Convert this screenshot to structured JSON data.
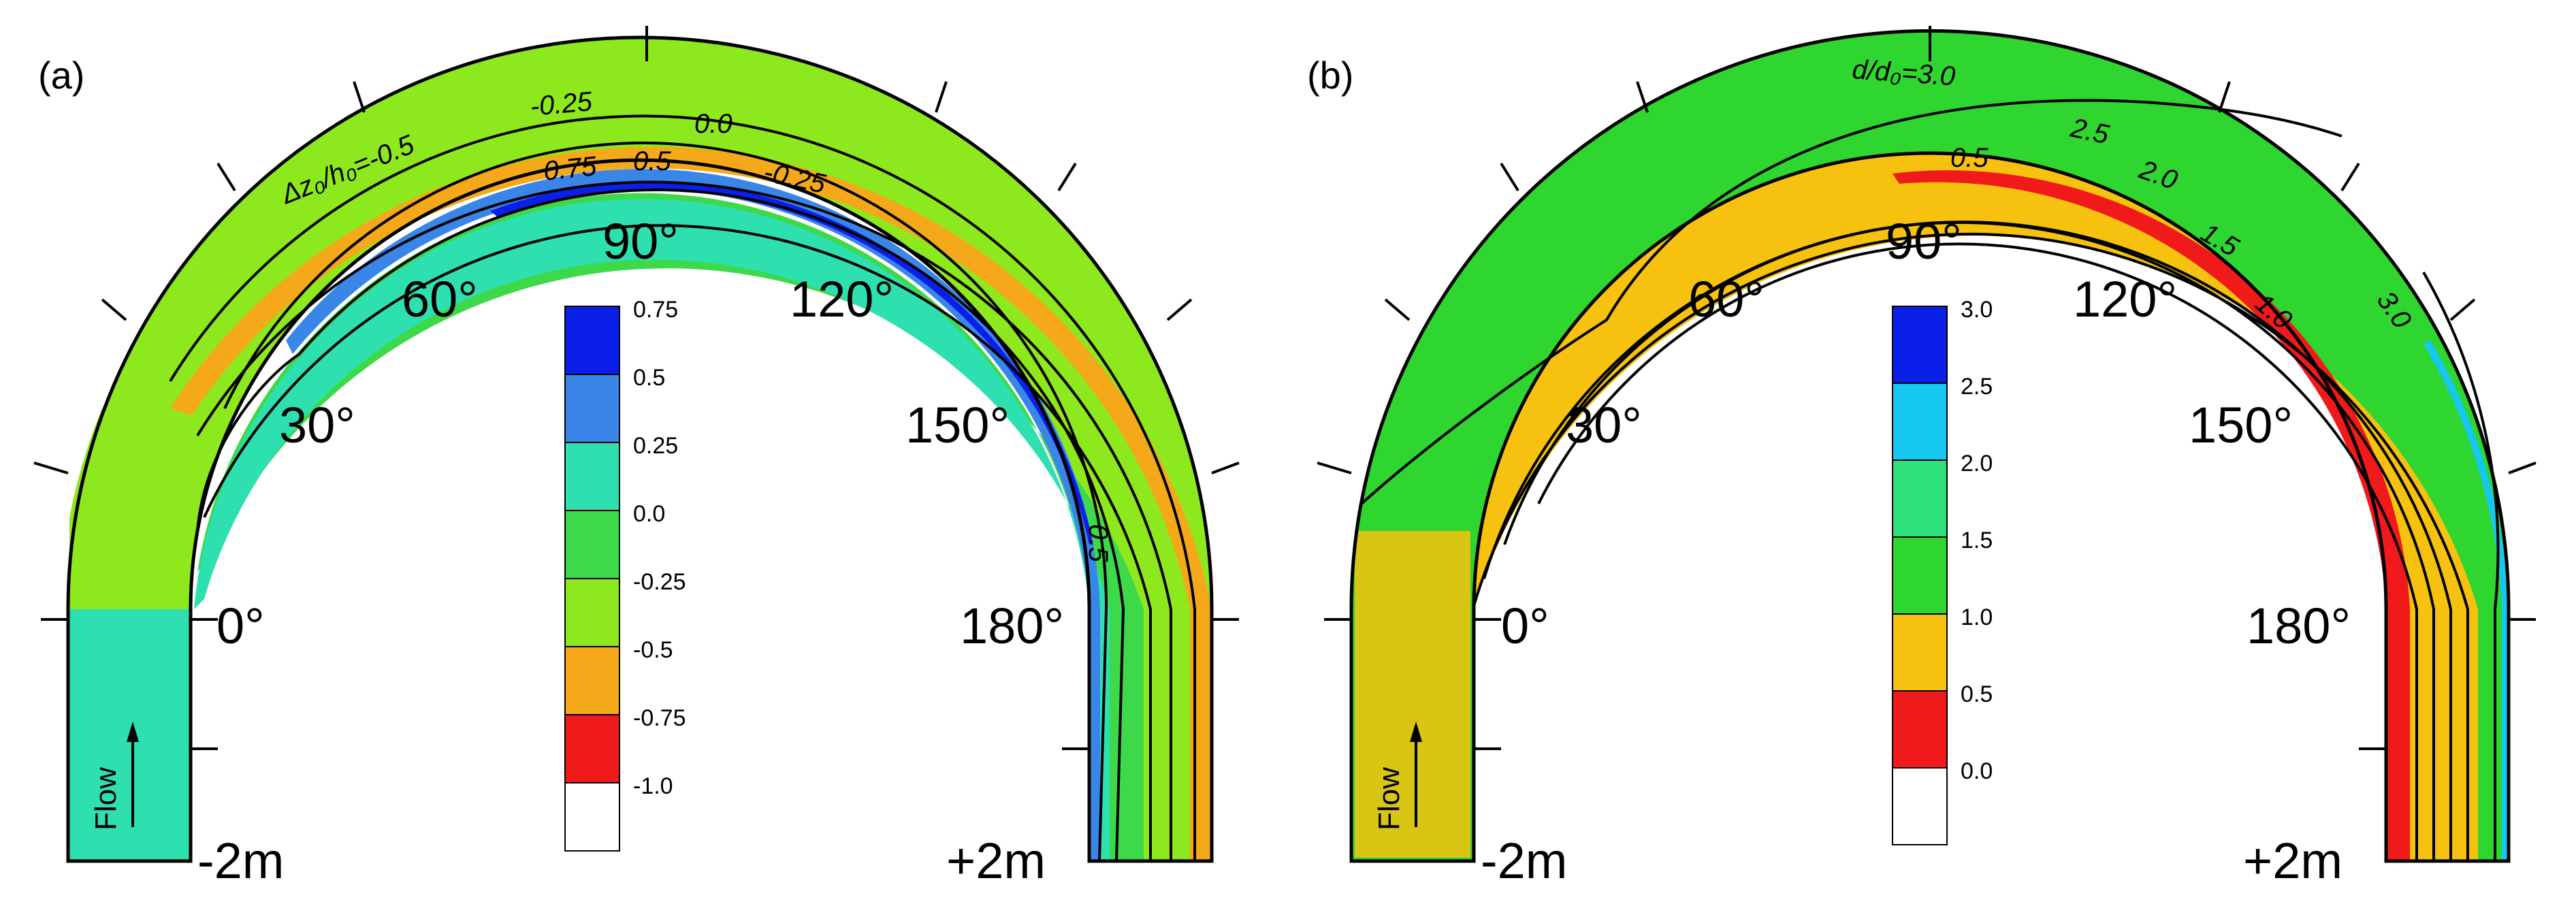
{
  "panels": [
    {
      "label": "(a)",
      "angles": [
        "0°",
        "30°",
        "60°",
        "90°",
        "120°",
        "150°",
        "180°"
      ],
      "left_end_label": "-2m",
      "right_end_label": "+2m",
      "flow_label": "Flow",
      "contour_labels": [
        "Δz₀/h₀=-0.5",
        "-0.25",
        "0.0",
        "-0.25",
        "0.75",
        "0.5",
        "0.5"
      ],
      "legend": [
        {
          "label": "0.75",
          "color": "#0a1fe8"
        },
        {
          "label": "0.5",
          "color": "#3a86e8"
        },
        {
          "label": "0.25",
          "color": "#2ee0b0"
        },
        {
          "label": "0.0",
          "color": "#3dd94a"
        },
        {
          "label": "-0.25",
          "color": "#8ee81e"
        },
        {
          "label": "-0.5",
          "color": "#f4a81a"
        },
        {
          "label": "-0.75",
          "color": "#f11a1a"
        },
        {
          "label": "-1.0",
          "color": "#ffffff"
        }
      ],
      "colors": {
        "outer": "#f4a81a",
        "mid": "#8ee81e",
        "green": "#3dd94a",
        "teal": "#2ee0b0",
        "blue": "#3a86e8",
        "deep": "#0a1fe8"
      }
    },
    {
      "label": "(b)",
      "angles": [
        "0°",
        "30°",
        "60°",
        "90°",
        "120°",
        "150°",
        "180°"
      ],
      "left_end_label": "-2m",
      "right_end_label": "+2m",
      "flow_label": "Flow",
      "contour_labels": [
        "d/d₀=3.0",
        "2.5",
        "2.0",
        "1.5",
        "1.0",
        "0.5",
        "3.0"
      ],
      "legend": [
        {
          "label": "3.0",
          "color": "#0a1fe8"
        },
        {
          "label": "2.5",
          "color": "#16c8f0"
        },
        {
          "label": "2.0",
          "color": "#2ee07a"
        },
        {
          "label": "1.5",
          "color": "#2fd62f"
        },
        {
          "label": "1.0",
          "color": "#f6c20f"
        },
        {
          "label": "0.5",
          "color": "#f01a1a"
        },
        {
          "label": "0.0",
          "color": "#ffffff"
        }
      ],
      "colors": {
        "outer": "#2fd62f",
        "mid": "#f6c20f",
        "inner": "#f01a1a",
        "light": "#2ee07a",
        "cyan": "#16c8f0"
      }
    }
  ]
}
